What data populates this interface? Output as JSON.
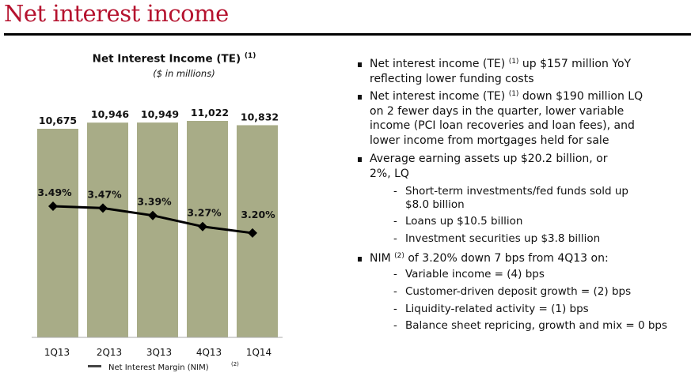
{
  "page_title": "Net interest income",
  "chart_data": {
    "type": "bar+line",
    "title": "Net Interest Income (TE)",
    "title_sup": "(1)",
    "subtitle": "($ in millions)",
    "categories": [
      "1Q13",
      "2Q13",
      "3Q13",
      "4Q13",
      "1Q14"
    ],
    "series": [
      {
        "name": "Net Interest Income (TE)",
        "type": "bar",
        "values": [
          10675,
          10946,
          10949,
          11022,
          10832
        ],
        "labels": [
          "10,675",
          "10,946",
          "10,949",
          "11,022",
          "10,832"
        ],
        "color": "#a8ac87"
      },
      {
        "name": "Net Interest Margin (NIM)",
        "type": "line",
        "values": [
          3.49,
          3.47,
          3.39,
          3.27,
          3.2
        ],
        "labels": [
          "3.49%",
          "3.47%",
          "3.39%",
          "3.27%",
          "3.20%"
        ],
        "color": "#000000"
      }
    ],
    "legend": {
      "label": "Net Interest Margin (NIM)",
      "sup": "(2)",
      "placement": "bottom"
    }
  },
  "bullets": [
    {
      "lines": [
        {
          "pre": "Net interest income (TE) ",
          "sup": "(1)",
          "post": " up $157 million YoY"
        },
        {
          "pre": "reflecting lower funding costs"
        }
      ]
    },
    {
      "lines": [
        {
          "pre": "Net interest income (TE) ",
          "sup": "(1)",
          "post": " down $190 million LQ"
        },
        {
          "pre": "on 2 fewer days in the quarter, lower variable"
        },
        {
          "pre": "income (PCI loan recoveries and loan fees), and"
        },
        {
          "pre": "lower income from mortgages held for sale"
        }
      ]
    },
    {
      "lines": [
        {
          "pre": "Average earning assets up $20.2 billion, or"
        },
        {
          "pre": "2%, LQ"
        }
      ],
      "subs": [
        {
          "lines": [
            "Short-term investments/fed funds sold up",
            "$8.0 billion"
          ]
        },
        {
          "lines": [
            "Loans up $10.5 billion"
          ]
        },
        {
          "lines": [
            "Investment securities up $3.8 billion"
          ]
        }
      ]
    },
    {
      "lines": [
        {
          "pre": "NIM ",
          "sup": "(2)",
          "post": "  of 3.20% down 7 bps from 4Q13 on:"
        }
      ],
      "subs": [
        {
          "lines": [
            "Variable income = (4) bps"
          ]
        },
        {
          "lines": [
            "Customer-driven deposit growth = (2) bps"
          ]
        },
        {
          "lines": [
            "Liquidity-related activity = (1) bps"
          ]
        },
        {
          "lines": [
            "Balance sheet repricing, growth and mix = 0 bps"
          ]
        }
      ]
    }
  ],
  "dash": "-"
}
